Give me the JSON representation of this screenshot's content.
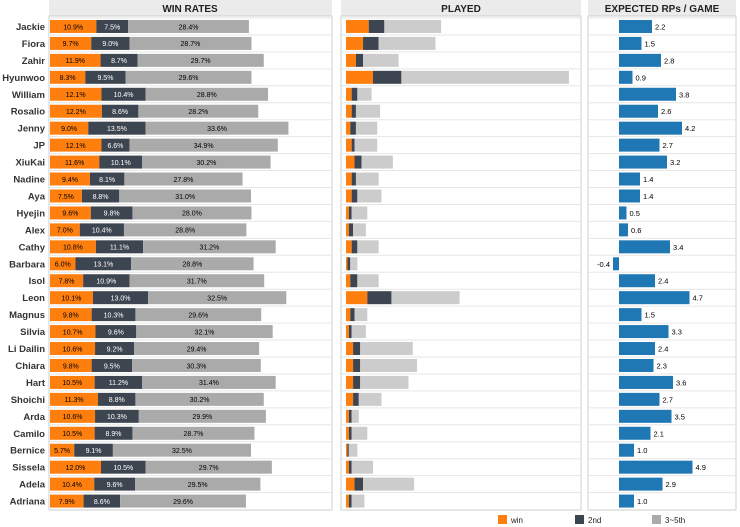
{
  "chart_data": [
    {
      "type": "bar",
      "title": "WIN RATES",
      "stacked": true,
      "categories": [
        "Jackie",
        "Fiora",
        "Zahir",
        "Hyunwoo",
        "William",
        "Rosalio",
        "Jenny",
        "JP",
        "XiuKai",
        "Nadine",
        "Aya",
        "Hyejin",
        "Alex",
        "Cathy",
        "Barbara",
        "Isol",
        "Leon",
        "Magnus",
        "Silvia",
        "Li Dailin",
        "Chiara",
        "Hart",
        "Shoichi",
        "Arda",
        "Camilo",
        "Bernice",
        "Sissela",
        "Adela",
        "Adriana"
      ],
      "series": [
        {
          "name": "win",
          "values": [
            10.9,
            9.7,
            11.9,
            8.3,
            12.1,
            12.2,
            9.0,
            12.1,
            11.6,
            9.4,
            7.5,
            9.6,
            7.0,
            10.8,
            6.0,
            7.8,
            10.1,
            9.8,
            10.7,
            10.6,
            9.8,
            10.5,
            11.3,
            10.6,
            10.5,
            5.7,
            12.0,
            10.4,
            7.9
          ],
          "labels": [
            "10.9%",
            "9.7%",
            "11.9%",
            "8.3%",
            "12.1%",
            "12.2%",
            "9.0%",
            "12.1%",
            "11.6%",
            "9.4%",
            "7.5%",
            "9.6%",
            "7.0%",
            "10.8%",
            "6.0%",
            "7.8%",
            "10.1%",
            "9.8%",
            "10.7%",
            "10.6%",
            "9.8%",
            "10.5%",
            "11.3%",
            "10.6%",
            "10.5%",
            "5.7%",
            "12.0%",
            "10.4%",
            "7.9%"
          ]
        },
        {
          "name": "2nd",
          "values": [
            7.5,
            9.0,
            8.7,
            9.5,
            10.4,
            8.6,
            13.5,
            6.6,
            10.1,
            8.1,
            8.8,
            9.8,
            10.4,
            11.1,
            13.1,
            10.9,
            13.0,
            10.3,
            9.6,
            9.2,
            9.5,
            11.2,
            8.8,
            10.3,
            8.9,
            9.1,
            10.5,
            9.6,
            8.6
          ],
          "labels": [
            "7.5%",
            "9.0%",
            "8.7%",
            "9.5%",
            "10.4%",
            "8.6%",
            "13.5%",
            "6.6%",
            "10.1%",
            "8.1%",
            "8.8%",
            "9.8%",
            "10.4%",
            "11.1%",
            "13.1%",
            "10.9%",
            "13.0%",
            "10.3%",
            "9.6%",
            "9.2%",
            "9.5%",
            "11.2%",
            "8.8%",
            "10.3%",
            "8.9%",
            "9.1%",
            "10.5%",
            "9.6%",
            "8.6%"
          ]
        },
        {
          "name": "3~5th",
          "values": [
            28.4,
            28.7,
            29.7,
            29.6,
            28.8,
            28.2,
            33.6,
            34.9,
            30.2,
            27.8,
            31.0,
            28.0,
            28.8,
            31.2,
            28.8,
            31.7,
            32.5,
            29.6,
            32.1,
            29.4,
            30.3,
            31.4,
            30.2,
            29.9,
            28.7,
            32.5,
            29.7,
            29.5,
            29.6
          ],
          "labels": [
            "28.4%",
            "28.7%",
            "29.7%",
            "29.6%",
            "28.8%",
            "28.2%",
            "33.6%",
            "34.9%",
            "30.2%",
            "27.8%",
            "31.0%",
            "28.0%",
            "28.8%",
            "31.2%",
            "28.8%",
            "31.7%",
            "32.5%",
            "29.6%",
            "32.1%",
            "29.4%",
            "30.3%",
            "31.4%",
            "30.2%",
            "29.9%",
            "28.7%",
            "32.5%",
            "29.7%",
            "29.5%",
            "29.6%"
          ]
        }
      ]
    },
    {
      "type": "bar",
      "title": "PLAYED",
      "stacked": true,
      "categories": [
        "Jackie",
        "Fiora",
        "Zahir",
        "Hyunwoo",
        "William",
        "Rosalio",
        "Jenny",
        "JP",
        "XiuKai",
        "Nadine",
        "Aya",
        "Hyejin",
        "Alex",
        "Cathy",
        "Barbara",
        "Isol",
        "Leon",
        "Magnus",
        "Silvia",
        "Li Dailin",
        "Chiara",
        "Hart",
        "Shoichi",
        "Arda",
        "Camilo",
        "Bernice",
        "Sissela",
        "Adela",
        "Adriana"
      ],
      "series": [
        {
          "name": "win",
          "values": [
            16,
            12,
            7,
            19,
            4,
            4,
            3,
            4,
            6,
            4,
            4,
            2,
            2,
            4,
            1,
            3,
            15,
            3,
            2,
            5,
            5,
            5,
            5,
            2,
            2,
            1,
            2,
            6,
            2
          ]
        },
        {
          "name": "2nd",
          "values": [
            11,
            11,
            5,
            20,
            4,
            3,
            4,
            2,
            5,
            3,
            4,
            2,
            3,
            4,
            2,
            5,
            17,
            3,
            2,
            5,
            5,
            5,
            4,
            2,
            2,
            1,
            2,
            6,
            2
          ]
        },
        {
          "name": "3~5th",
          "values": [
            40,
            40,
            25,
            118,
            10,
            17,
            15,
            16,
            22,
            16,
            17,
            11,
            9,
            15,
            5,
            15,
            48,
            9,
            10,
            37,
            40,
            34,
            16,
            5,
            11,
            6,
            15,
            36,
            9
          ]
        }
      ]
    },
    {
      "type": "bar",
      "title": "EXPECTED RPs / GAME",
      "categories": [
        "Jackie",
        "Fiora",
        "Zahir",
        "Hyunwoo",
        "William",
        "Rosalio",
        "Jenny",
        "JP",
        "XiuKai",
        "Nadine",
        "Aya",
        "Hyejin",
        "Alex",
        "Cathy",
        "Barbara",
        "Isol",
        "Leon",
        "Magnus",
        "Silvia",
        "Li Dailin",
        "Chiara",
        "Hart",
        "Shoichi",
        "Arda",
        "Camilo",
        "Bernice",
        "Sissela",
        "Adela",
        "Adriana"
      ],
      "values": [
        2.2,
        1.5,
        2.8,
        0.9,
        3.8,
        2.6,
        4.2,
        2.7,
        3.2,
        1.4,
        1.4,
        0.5,
        0.6,
        3.4,
        -0.4,
        2.4,
        4.7,
        1.5,
        3.3,
        2.4,
        2.3,
        3.6,
        2.7,
        3.5,
        2.1,
        1.0,
        4.9,
        2.9,
        1.0
      ],
      "labels": [
        "2.2",
        "1.5",
        "2.8",
        "0.9",
        "3.8",
        "2.6",
        "4.2",
        "2.7",
        "3.2",
        "1.4",
        "1.4",
        "0.5",
        "0.6",
        "3.4",
        "-0.4",
        "2.4",
        "4.7",
        "1.5",
        "3.3",
        "2.4",
        "2.3",
        "3.6",
        "2.7",
        "3.5",
        "2.1",
        "1.0",
        "4.9",
        "2.9",
        "1.0"
      ]
    }
  ],
  "legend": [
    {
      "label": "win",
      "color": "#FF7F0E"
    },
    {
      "label": "2nd",
      "color": "#3D4551"
    },
    {
      "label": "3~5th",
      "color": "#AAAAAA"
    }
  ],
  "colors": {
    "win": "#FF7F0E",
    "second": "#3D4551",
    "rest_winrate": "#AAAAAA",
    "rest_played": "#CCCCCC",
    "rp": "#1F77B4",
    "header_bg": "#EBEBEB",
    "grid": "#E6E6E6"
  }
}
